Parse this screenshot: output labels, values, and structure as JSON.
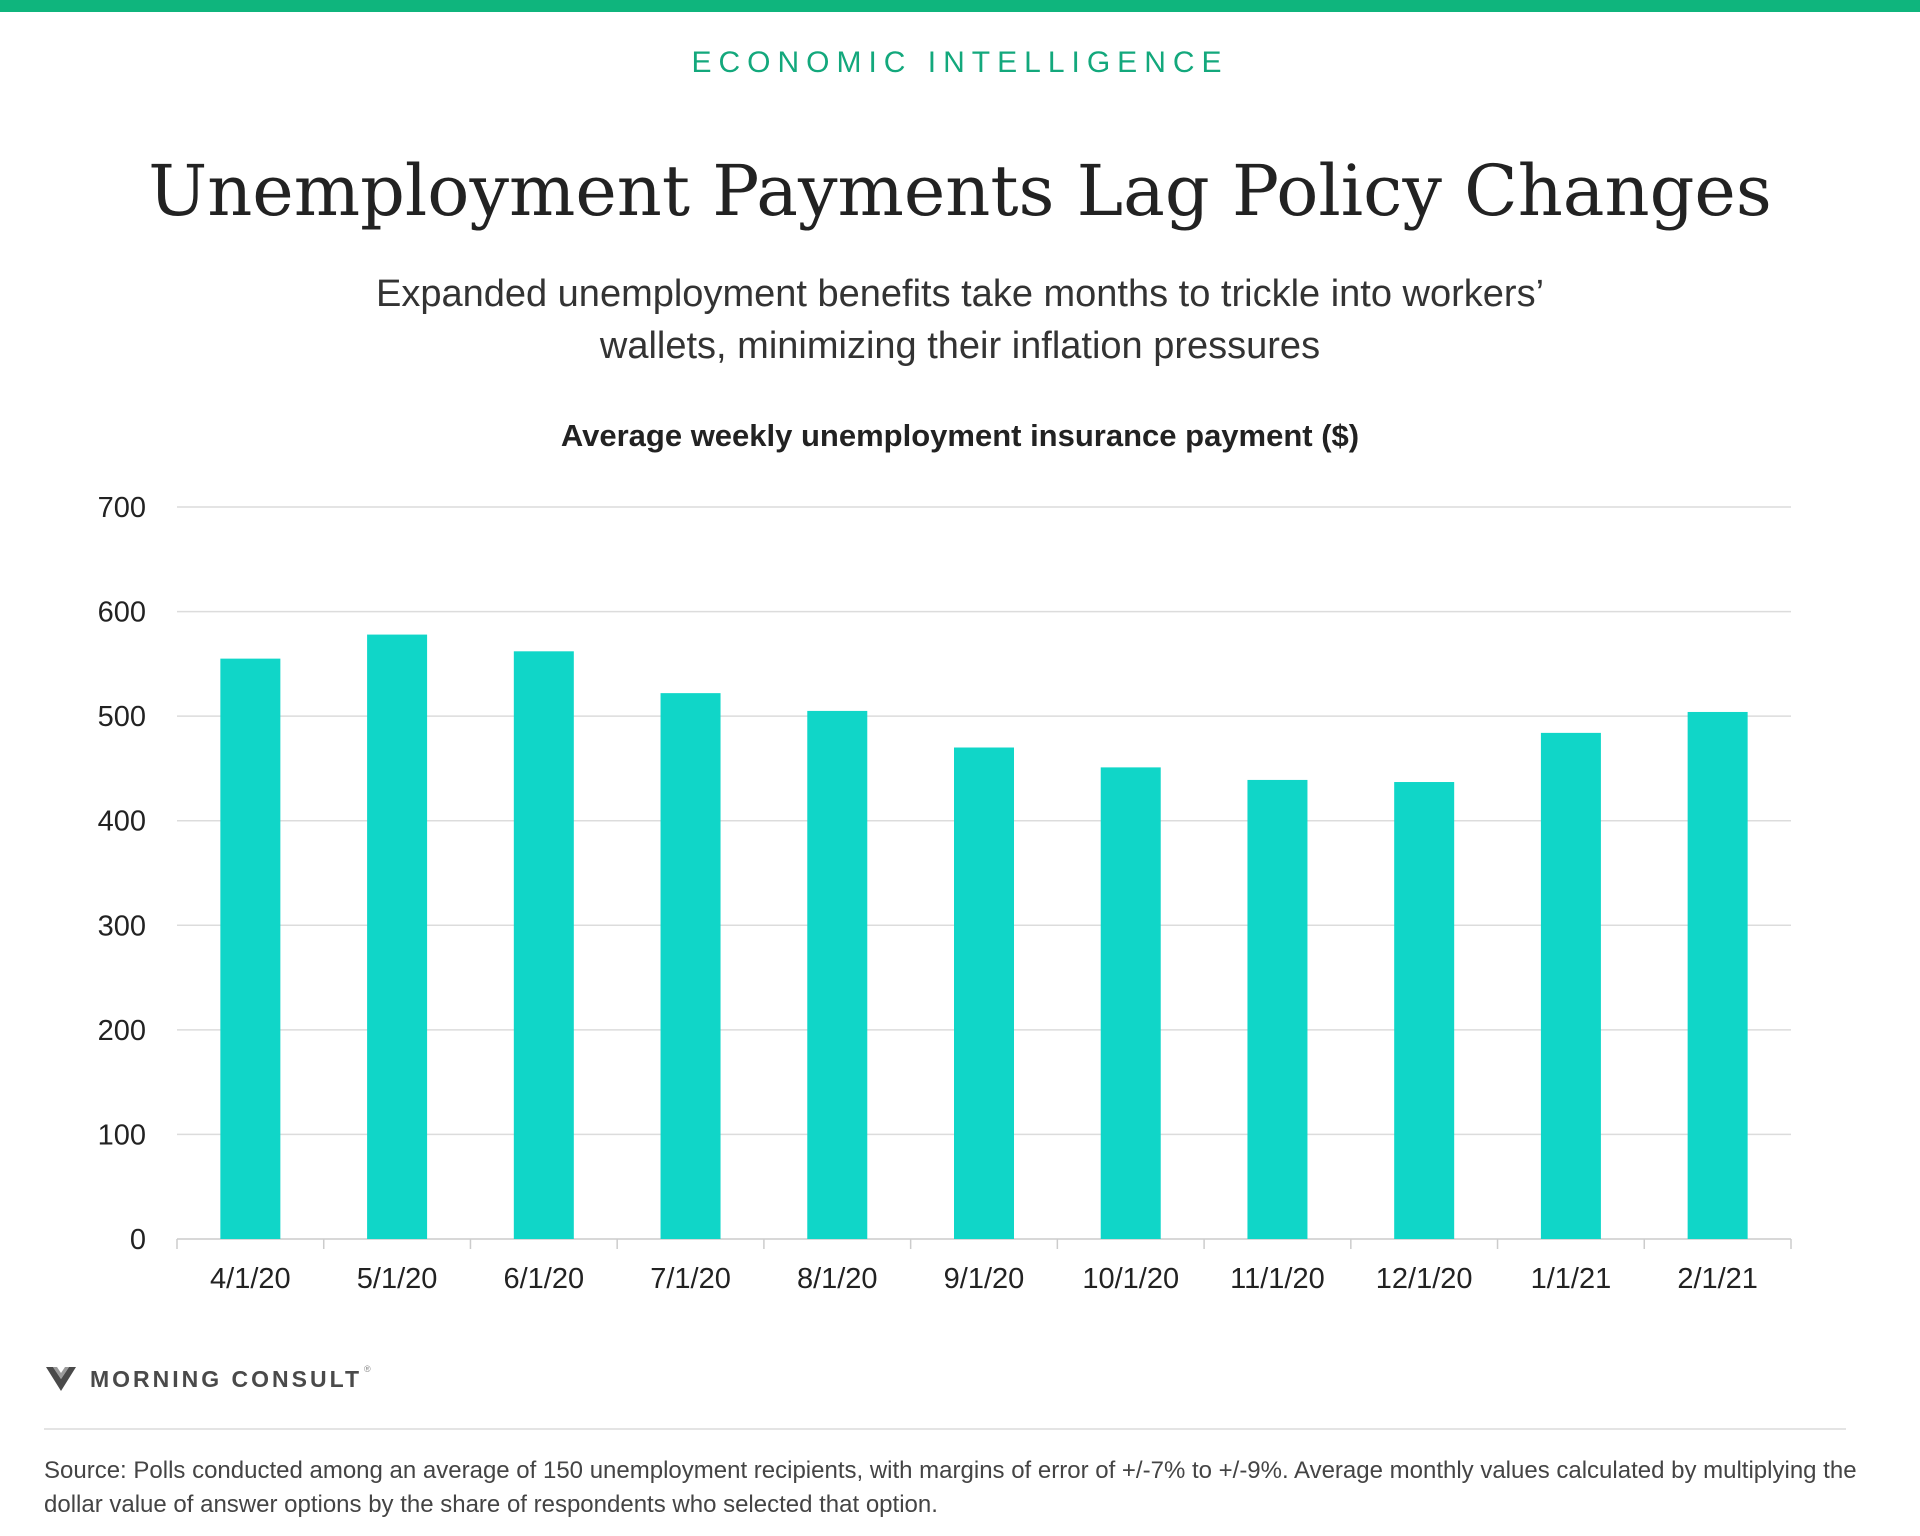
{
  "header": {
    "kicker": "ECONOMIC INTELLIGENCE",
    "title": "Unemployment Payments Lag Policy Changes",
    "subtitle": "Expanded unemployment benefits take months to trickle into workers’ wallets, minimizing their inflation pressures"
  },
  "chart_data": {
    "type": "bar",
    "title": "Average weekly unemployment insurance payment ($)",
    "xlabel": "",
    "ylabel": "",
    "categories": [
      "4/1/20",
      "5/1/20",
      "6/1/20",
      "7/1/20",
      "8/1/20",
      "9/1/20",
      "10/1/20",
      "11/1/20",
      "12/1/20",
      "1/1/21",
      "2/1/21"
    ],
    "values": [
      555,
      578,
      562,
      522,
      505,
      470,
      451,
      439,
      437,
      484,
      504
    ],
    "ylim": [
      0,
      700
    ],
    "yticks": [
      0,
      100,
      200,
      300,
      400,
      500,
      600,
      700
    ],
    "grid": true,
    "bar_color": "#10d6c8",
    "legend": "none"
  },
  "footer": {
    "logo_text": "MORNING CONSULT",
    "logo_mark": "morning-consult-m-icon",
    "logo_tm": "®",
    "source": "Source: Polls conducted among an average of 150 unemployment recipients, with margins of error of +/-7% to +/-9%. Average monthly values calculated by multiplying the dollar value of answer options by the share of respondents who selected that option."
  },
  "colors": {
    "accent_green": "#0fb57d",
    "bar_teal": "#10d6c8"
  }
}
